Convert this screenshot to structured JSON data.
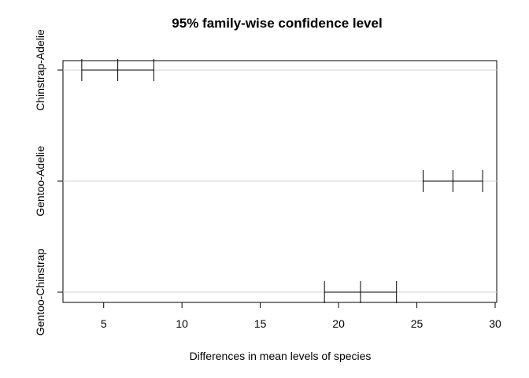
{
  "chart_data": {
    "type": "errorbar",
    "title": "95% family-wise confidence level",
    "xlabel": "Differences in mean levels of species",
    "ylabel": "",
    "xlim": [
      2.4,
      30.1
    ],
    "xticks": [
      5,
      10,
      15,
      20,
      25,
      30
    ],
    "grid": "horizontal",
    "comparisons": [
      {
        "label": "Chinstrap-Adelie",
        "lwr": 3.6,
        "diff": 5.9,
        "upr": 8.2
      },
      {
        "label": "Gentoo-Adelie",
        "lwr": 25.4,
        "diff": 27.3,
        "upr": 29.2
      },
      {
        "label": "Gentoo-Chinstrap",
        "lwr": 19.1,
        "diff": 21.4,
        "upr": 23.7
      }
    ]
  }
}
